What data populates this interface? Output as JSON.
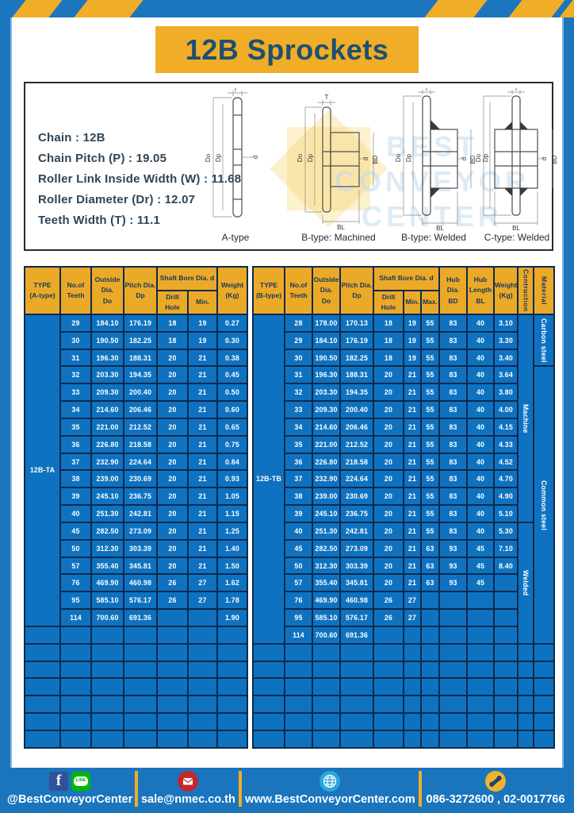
{
  "page_title": "12B Sprockets",
  "colors": {
    "frame_blue": "#1b76bd",
    "banner_yellow": "#f0ad28",
    "header_yellow": "#eba928",
    "table_cell_blue": "#0e72c0",
    "grid_navy": "#0e2a4d",
    "title_text": "#1d4f72",
    "footer_bar_blue": "#1a75bd"
  },
  "specs": {
    "lines": [
      "Chain  :  12B",
      "Chain Pitch (P)  :  19.05",
      "Roller Link Inside Width (W) : 11.68",
      "Roller Diameter (Dr)  : 12.07",
      "Teeth Width (T)  :  11.1"
    ]
  },
  "diagram": {
    "labels": [
      "A-type",
      "B-type: Machined",
      "B-type: Welded",
      "C-type: Welded"
    ],
    "dims": {
      "t": "T",
      "dia_o": "Do",
      "dia_p": "Dp",
      "d": "d",
      "bd": "BD",
      "bl": "BL"
    },
    "watermark_lines": [
      "BEST",
      "CONVEYOR",
      "CENTER"
    ]
  },
  "table_a": {
    "headers": {
      "type": "TYPE\n(A-type)",
      "teeth": "No.of\nTeeth",
      "outside": "Outside\nDia.\nDo",
      "pitch": "Pitch Dia.\nDp",
      "shaft_bore": "Shaft Bore Dia. d",
      "drill": "Drill Hole",
      "min": "Min.",
      "weight": "Weight\n(Kg)"
    },
    "type_label": "12B-TA",
    "rows": [
      [
        "29",
        "184.10",
        "176.19",
        "18",
        "19",
        "0.27"
      ],
      [
        "30",
        "190.50",
        "182.25",
        "18",
        "19",
        "0.30"
      ],
      [
        "31",
        "196.30",
        "188.31",
        "20",
        "21",
        "0.38"
      ],
      [
        "32",
        "203.30",
        "194.35",
        "20",
        "21",
        "0.45"
      ],
      [
        "33",
        "209.30",
        "200.40",
        "20",
        "21",
        "0.50"
      ],
      [
        "34",
        "214.60",
        "206.46",
        "20",
        "21",
        "0.60"
      ],
      [
        "35",
        "221.00",
        "212.52",
        "20",
        "21",
        "0.65"
      ],
      [
        "36",
        "226.80",
        "218.58",
        "20",
        "21",
        "0.75"
      ],
      [
        "37",
        "232.90",
        "224.64",
        "20",
        "21",
        "0.84"
      ],
      [
        "38",
        "239.00",
        "230.69",
        "20",
        "21",
        "0.93"
      ],
      [
        "39",
        "245.10",
        "236.75",
        "20",
        "21",
        "1.05"
      ],
      [
        "40",
        "251.30",
        "242.81",
        "20",
        "21",
        "1.15"
      ],
      [
        "45",
        "282.50",
        "273.09",
        "20",
        "21",
        "1.25"
      ],
      [
        "50",
        "312.30",
        "303.39",
        "20",
        "21",
        "1.40"
      ],
      [
        "57",
        "355.40",
        "345.81",
        "20",
        "21",
        "1.50"
      ],
      [
        "76",
        "469.90",
        "460.98",
        "26",
        "27",
        "1.62"
      ],
      [
        "95",
        "585.10",
        "576.17",
        "26",
        "27",
        "1.78"
      ],
      [
        "114",
        "700.60",
        "691.36",
        "",
        "",
        "1.90"
      ]
    ],
    "empty_rows": 7
  },
  "table_b": {
    "headers": {
      "type": "TYPE\n(B-type)",
      "teeth": "No.of\nTeeth",
      "outside": "Outside\nDia.\nDo",
      "pitch": "Pitch Dia.\nDp",
      "shaft_bore": "Shaft Bore Dia. d",
      "drill": "Drill Hole",
      "min": "Min.",
      "max": "Max.",
      "hub_dia": "Hub Dia.\nBD",
      "hub_len": "Hub\nLength\nBL",
      "weight": "Weight\n(Kg)",
      "construction": "Contruction",
      "material": "Material"
    },
    "type_label": "12B-TB",
    "rows": [
      [
        "28",
        "178.00",
        "170.13",
        "18",
        "19",
        "55",
        "83",
        "40",
        "3.10"
      ],
      [
        "29",
        "184.10",
        "176.19",
        "18",
        "19",
        "55",
        "83",
        "40",
        "3.30"
      ],
      [
        "30",
        "190.50",
        "182.25",
        "18",
        "19",
        "55",
        "83",
        "40",
        "3.40"
      ],
      [
        "31",
        "196.30",
        "188.31",
        "20",
        "21",
        "55",
        "83",
        "40",
        "3.64"
      ],
      [
        "32",
        "203.30",
        "194.35",
        "20",
        "21",
        "55",
        "83",
        "40",
        "3.80"
      ],
      [
        "33",
        "209.30",
        "200.40",
        "20",
        "21",
        "55",
        "83",
        "40",
        "4.00"
      ],
      [
        "34",
        "214.60",
        "206.46",
        "20",
        "21",
        "55",
        "83",
        "40",
        "4.15"
      ],
      [
        "35",
        "221.00",
        "212.52",
        "20",
        "21",
        "55",
        "83",
        "40",
        "4.33"
      ],
      [
        "36",
        "226.80",
        "218.58",
        "20",
        "21",
        "55",
        "83",
        "40",
        "4.52"
      ],
      [
        "37",
        "232.90",
        "224.64",
        "20",
        "21",
        "55",
        "83",
        "40",
        "4.70"
      ],
      [
        "38",
        "239.00",
        "230.69",
        "20",
        "21",
        "55",
        "83",
        "40",
        "4.90"
      ],
      [
        "39",
        "245.10",
        "236.75",
        "20",
        "21",
        "55",
        "83",
        "40",
        "5.10"
      ],
      [
        "40",
        "251.30",
        "242.81",
        "20",
        "21",
        "55",
        "83",
        "40",
        "5.30"
      ],
      [
        "45",
        "282.50",
        "273.09",
        "20",
        "21",
        "63",
        "93",
        "45",
        "7.10"
      ],
      [
        "50",
        "312.30",
        "303.39",
        "20",
        "21",
        "63",
        "93",
        "45",
        "8.40"
      ],
      [
        "57",
        "355.40",
        "345.81",
        "20",
        "21",
        "63",
        "93",
        "45",
        ""
      ],
      [
        "76",
        "469.90",
        "460.98",
        "26",
        "27",
        "",
        "",
        "",
        ""
      ],
      [
        "95",
        "585.10",
        "576.17",
        "26",
        "27",
        "",
        "",
        "",
        ""
      ],
      [
        "114",
        "700.60",
        "691.36",
        "",
        "",
        "",
        "",
        "",
        ""
      ]
    ],
    "span_columns": [
      {
        "name": "construction",
        "segments": [
          {
            "label": "Machine",
            "start": 0,
            "rows": 12
          },
          {
            "label": "Welded",
            "start": 12,
            "rows": 7
          }
        ]
      },
      {
        "name": "material",
        "segments": [
          {
            "label": "Carbon steel",
            "start": 0,
            "rows": 3
          },
          {
            "label": "Common steel",
            "start": 3,
            "rows": 16
          }
        ]
      }
    ],
    "empty_rows": 6
  },
  "footer": {
    "facebook_letter": "f",
    "line_label": "LINE",
    "social_handle": "@BestConveyorCenter",
    "email": "sale@nmec.co.th",
    "website": "www.BestConveyorCenter.com",
    "phones": "086-3272600 , 02-0017766"
  }
}
